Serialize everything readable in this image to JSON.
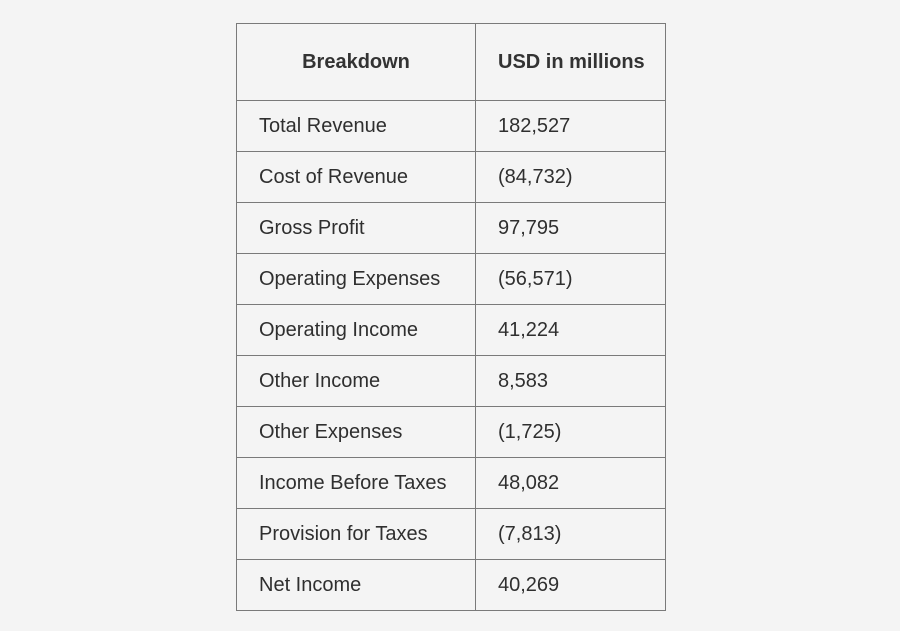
{
  "table": {
    "headers": [
      "Breakdown",
      "USD in millions"
    ],
    "rows": [
      [
        "Total Revenue",
        "182,527"
      ],
      [
        "Cost of Revenue",
        "(84,732)"
      ],
      [
        "Gross Profit",
        "97,795"
      ],
      [
        "Operating Expenses",
        "(56,571)"
      ],
      [
        "Operating Income",
        "41,224"
      ],
      [
        "Other Income",
        "8,583"
      ],
      [
        "Other Expenses",
        "(1,725)"
      ],
      [
        "Income Before Taxes",
        "48,082"
      ],
      [
        "Provision for Taxes",
        "(7,813)"
      ],
      [
        "Net Income",
        "40,269"
      ]
    ]
  }
}
